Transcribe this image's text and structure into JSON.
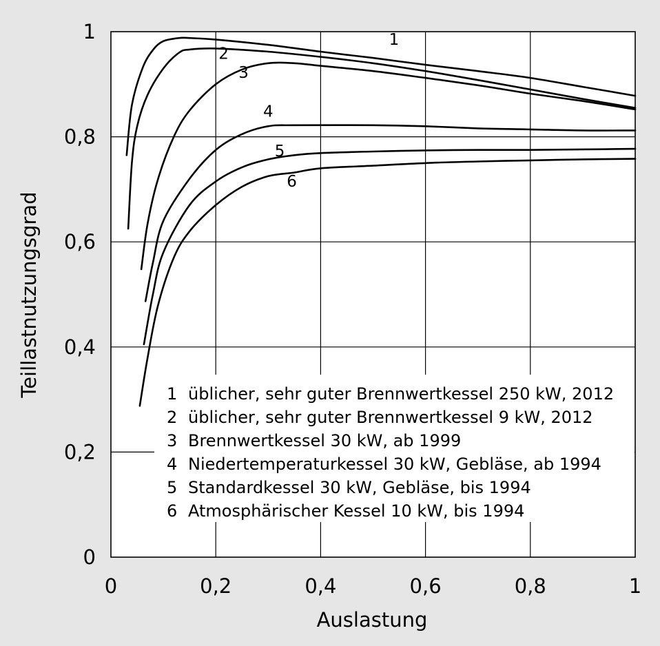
{
  "chart_data": {
    "type": "line",
    "title": "",
    "xlabel": "Auslastung",
    "ylabel": "Teillastnutzungsgrad",
    "xlim": [
      0,
      1
    ],
    "ylim": [
      0,
      1
    ],
    "grid": true,
    "x_ticks": [
      {
        "value": 0,
        "label": "0"
      },
      {
        "value": 0.2,
        "label": "0,2"
      },
      {
        "value": 0.4,
        "label": "0,4"
      },
      {
        "value": 0.6,
        "label": "0,6"
      },
      {
        "value": 0.8,
        "label": "0,8"
      },
      {
        "value": 1,
        "label": "1"
      }
    ],
    "y_ticks": [
      {
        "value": 0,
        "label": "0"
      },
      {
        "value": 0.2,
        "label": "0,2"
      },
      {
        "value": 0.4,
        "label": "0,4"
      },
      {
        "value": 0.6,
        "label": "0,6"
      },
      {
        "value": 0.8,
        "label": "0,8"
      },
      {
        "value": 1,
        "label": "1"
      }
    ],
    "series": [
      {
        "label": "1",
        "label_at": [
          0.54,
          0.975
        ],
        "points": [
          [
            0.03,
            0.765
          ],
          [
            0.04,
            0.86
          ],
          [
            0.06,
            0.93
          ],
          [
            0.08,
            0.965
          ],
          [
            0.1,
            0.982
          ],
          [
            0.13,
            0.988
          ],
          [
            0.15,
            0.988
          ],
          [
            0.2,
            0.985
          ],
          [
            0.3,
            0.975
          ],
          [
            0.4,
            0.962
          ],
          [
            0.5,
            0.95
          ],
          [
            0.6,
            0.937
          ],
          [
            0.7,
            0.925
          ],
          [
            0.8,
            0.912
          ],
          [
            0.9,
            0.895
          ],
          [
            1.0,
            0.878
          ]
        ]
      },
      {
        "label": "2",
        "label_at": [
          0.215,
          0.948
        ],
        "points": [
          [
            0.033,
            0.625
          ],
          [
            0.04,
            0.75
          ],
          [
            0.05,
            0.82
          ],
          [
            0.07,
            0.88
          ],
          [
            0.1,
            0.93
          ],
          [
            0.13,
            0.96
          ],
          [
            0.15,
            0.966
          ],
          [
            0.2,
            0.968
          ],
          [
            0.3,
            0.962
          ],
          [
            0.4,
            0.952
          ],
          [
            0.5,
            0.94
          ],
          [
            0.6,
            0.925
          ],
          [
            0.7,
            0.908
          ],
          [
            0.8,
            0.89
          ],
          [
            0.9,
            0.872
          ],
          [
            1.0,
            0.855
          ]
        ]
      },
      {
        "label": "3",
        "label_at": [
          0.253,
          0.912
        ],
        "points": [
          [
            0.058,
            0.548
          ],
          [
            0.07,
            0.635
          ],
          [
            0.09,
            0.72
          ],
          [
            0.12,
            0.8
          ],
          [
            0.15,
            0.85
          ],
          [
            0.2,
            0.9
          ],
          [
            0.25,
            0.928
          ],
          [
            0.3,
            0.94
          ],
          [
            0.35,
            0.94
          ],
          [
            0.4,
            0.935
          ],
          [
            0.5,
            0.925
          ],
          [
            0.6,
            0.912
          ],
          [
            0.7,
            0.898
          ],
          [
            0.8,
            0.882
          ],
          [
            0.9,
            0.868
          ],
          [
            1.0,
            0.852
          ]
        ]
      },
      {
        "label": "4",
        "label_at": [
          0.3,
          0.838
        ],
        "points": [
          [
            0.066,
            0.487
          ],
          [
            0.08,
            0.56
          ],
          [
            0.1,
            0.64
          ],
          [
            0.15,
            0.72
          ],
          [
            0.2,
            0.775
          ],
          [
            0.25,
            0.805
          ],
          [
            0.3,
            0.82
          ],
          [
            0.35,
            0.822
          ],
          [
            0.5,
            0.822
          ],
          [
            0.6,
            0.82
          ],
          [
            0.7,
            0.816
          ],
          [
            0.8,
            0.814
          ],
          [
            0.9,
            0.812
          ],
          [
            1.0,
            0.812
          ]
        ]
      },
      {
        "label": "5",
        "label_at": [
          0.322,
          0.763
        ],
        "points": [
          [
            0.063,
            0.405
          ],
          [
            0.08,
            0.5
          ],
          [
            0.1,
            0.58
          ],
          [
            0.15,
            0.67
          ],
          [
            0.2,
            0.715
          ],
          [
            0.25,
            0.742
          ],
          [
            0.3,
            0.757
          ],
          [
            0.35,
            0.765
          ],
          [
            0.4,
            0.769
          ],
          [
            0.5,
            0.772
          ],
          [
            0.6,
            0.774
          ],
          [
            0.7,
            0.775
          ],
          [
            0.8,
            0.775
          ],
          [
            0.9,
            0.776
          ],
          [
            1.0,
            0.777
          ]
        ]
      },
      {
        "label": "6",
        "label_at": [
          0.345,
          0.705
        ],
        "points": [
          [
            0.055,
            0.288
          ],
          [
            0.07,
            0.38
          ],
          [
            0.09,
            0.48
          ],
          [
            0.12,
            0.57
          ],
          [
            0.15,
            0.62
          ],
          [
            0.2,
            0.67
          ],
          [
            0.25,
            0.705
          ],
          [
            0.3,
            0.725
          ],
          [
            0.35,
            0.732
          ],
          [
            0.4,
            0.74
          ],
          [
            0.5,
            0.745
          ],
          [
            0.6,
            0.75
          ],
          [
            0.7,
            0.753
          ],
          [
            0.8,
            0.755
          ],
          [
            0.9,
            0.757
          ],
          [
            1.0,
            0.758
          ]
        ]
      }
    ],
    "legend": [
      {
        "number": "1",
        "text": "üblicher, sehr guter Brennwertkessel 250 kW, 2012"
      },
      {
        "number": "2",
        "text": "üblicher, sehr guter Brennwertkessel 9 kW, 2012"
      },
      {
        "number": "3",
        "text": "Brennwertkessel 30 kW, ab 1999"
      },
      {
        "number": "4",
        "text": "Niedertemperaturkessel 30 kW, Gebläse, ab 1994"
      },
      {
        "number": "5",
        "text": "Standardkessel 30 kW, Gebläse, bis 1994"
      },
      {
        "number": "6",
        "text": "Atmosphärischer Kessel 10 kW, bis 1994"
      }
    ],
    "legend_position": "lower-right inside plot"
  }
}
